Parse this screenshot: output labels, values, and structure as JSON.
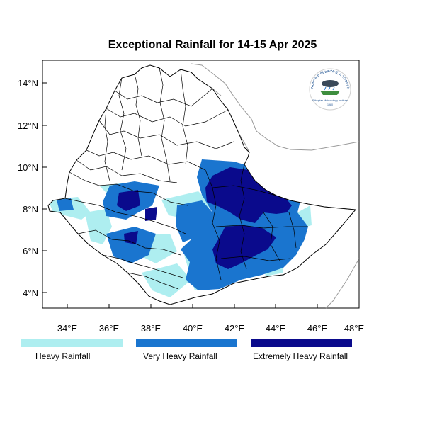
{
  "title": "Exceptional Rainfall for 14-15 Apr 2025",
  "axes": {
    "x_ticks": [
      "34°E",
      "36°E",
      "38°E",
      "40°E",
      "42°E",
      "44°E",
      "46°E",
      "48°E"
    ],
    "y_ticks": [
      "14°N",
      "12°N",
      "10°N",
      "8°N",
      "6°N",
      "4°N"
    ]
  },
  "legend": [
    {
      "label": "Heavy Rainfall",
      "color": "#aeeef0"
    },
    {
      "label": "Very Heavy Rainfall",
      "color": "#1a75cf"
    },
    {
      "label": "Extremely Heavy Rainfall",
      "color": "#0a0a8c"
    }
  ],
  "colors": {
    "heavy": "#aeeef0",
    "very_heavy": "#1a75cf",
    "extremely_heavy": "#0a0a8c",
    "neighbor_border": "#9a9a9a"
  },
  "logo": {
    "top_text": "የኢትዮጵያ ሜቴዎሮሎጂ ኢንስቲትዩት",
    "bottom_text": "Ethiopian Meteorology Institute",
    "year": "1980"
  }
}
